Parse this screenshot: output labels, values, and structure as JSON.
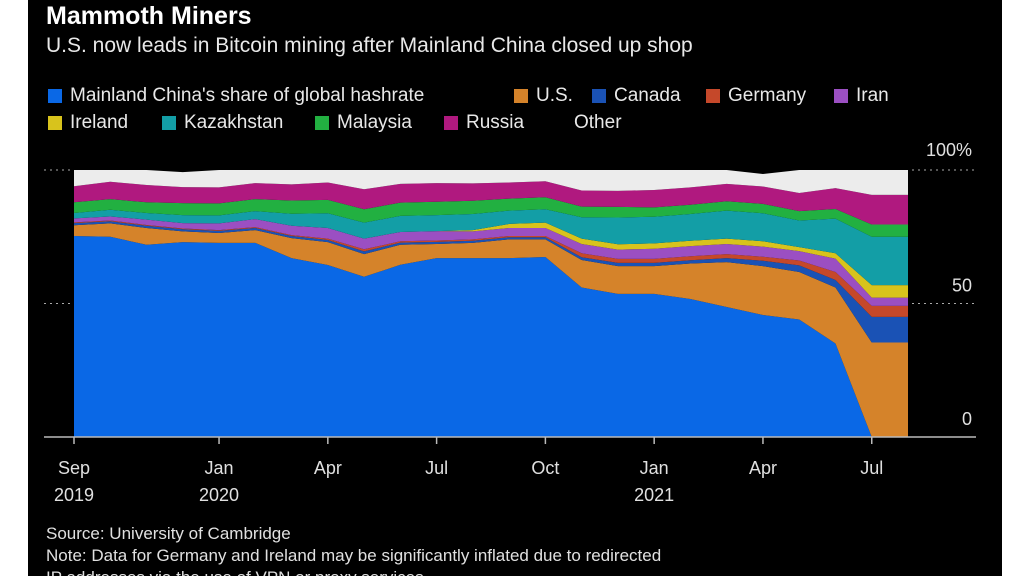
{
  "chart_data": {
    "type": "area",
    "stacked": true,
    "title": "Mammoth Miners",
    "subtitle": "U.S. now leads in Bitcoin mining after Mainland China closed up shop",
    "x": [
      "2019-09",
      "2019-10",
      "2019-11",
      "2019-12",
      "2020-01",
      "2020-02",
      "2020-03",
      "2020-04",
      "2020-05",
      "2020-06",
      "2020-07",
      "2020-08",
      "2020-09",
      "2020-10",
      "2020-11",
      "2020-12",
      "2021-01",
      "2021-02",
      "2021-03",
      "2021-04",
      "2021-05",
      "2021-06",
      "2021-07",
      "2021-08"
    ],
    "x_tick_labels": [
      {
        "month": "2019-09",
        "label": "Sep",
        "year": "2019"
      },
      {
        "month": "2020-01",
        "label": "Jan",
        "year": "2020"
      },
      {
        "month": "2020-04",
        "label": "Apr",
        "year": ""
      },
      {
        "month": "2020-07",
        "label": "Jul",
        "year": ""
      },
      {
        "month": "2020-10",
        "label": "Oct",
        "year": ""
      },
      {
        "month": "2021-01",
        "label": "Jan",
        "year": "2021"
      },
      {
        "month": "2021-04",
        "label": "Apr",
        "year": ""
      },
      {
        "month": "2021-07",
        "label": "Jul",
        "year": ""
      }
    ],
    "y_ticks": [
      {
        "value": 100,
        "label": "100%"
      },
      {
        "value": 50,
        "label": "50"
      },
      {
        "value": 0,
        "label": "0"
      }
    ],
    "ylim": [
      0,
      100
    ],
    "y_axis_side": "right",
    "grid": "dotted at 50 and 100",
    "legend_placement": "top",
    "series": [
      {
        "name": "Mainland China's share of global hashrate",
        "color": "#0a68e6",
        "values": [
          75.3,
          75,
          72,
          73,
          72.7,
          72.7,
          67,
          64.4,
          60,
          64.5,
          67,
          67,
          67,
          67.4,
          56,
          53.6,
          53.6,
          51.7,
          48.7,
          45.7,
          44,
          35,
          0,
          0
        ]
      },
      {
        "name": "U.S.",
        "color": "#d5832a",
        "values": [
          4,
          5,
          6.3,
          4,
          3.7,
          4.8,
          7.5,
          8.6,
          8.5,
          7.5,
          5.3,
          5.7,
          7,
          6.6,
          10.3,
          10.4,
          10.4,
          13.3,
          16.8,
          18.3,
          17.8,
          21,
          35.4,
          35.4
        ]
      },
      {
        "name": "Canada",
        "color": "#1a52b5",
        "values": [
          0.8,
          0.8,
          0.8,
          0.8,
          0.8,
          0.8,
          0.8,
          0.8,
          1,
          0.8,
          0.8,
          0.8,
          0.8,
          0.8,
          1,
          1.2,
          1.2,
          1.2,
          1.5,
          2,
          2.5,
          2.8,
          9.6,
          9.6
        ]
      },
      {
        "name": "Germany",
        "color": "#c5482a",
        "values": [
          0.3,
          0.3,
          0.3,
          0.3,
          0.3,
          0.3,
          0.3,
          0.5,
          0.8,
          0.5,
          0.5,
          0.5,
          0.5,
          0.5,
          1.5,
          1.5,
          1.5,
          1.5,
          1.5,
          1.5,
          1.8,
          3,
          4.1,
          4.1
        ]
      },
      {
        "name": "Iran",
        "color": "#9b4fc2",
        "values": [
          1.5,
          1.5,
          2,
          2,
          2.5,
          3,
          3.5,
          4,
          4,
          3.5,
          3.5,
          3,
          3,
          3,
          3.5,
          3.5,
          3.8,
          3.8,
          3.8,
          3.8,
          3.5,
          5,
          3.1,
          3.1
        ]
      },
      {
        "name": "Ireland",
        "color": "#d8c31c",
        "values": [
          0,
          0,
          0,
          0,
          0,
          0,
          0,
          0,
          0,
          0,
          0,
          0.5,
          1.5,
          2,
          2,
          2,
          2,
          2,
          2,
          2,
          1.5,
          2,
          4.7,
          4.7
        ]
      },
      {
        "name": "Kazakhstan",
        "color": "#139ea6",
        "values": [
          2,
          2.5,
          2.5,
          3,
          3,
          3,
          4.5,
          5.5,
          6,
          6,
          6,
          6,
          5,
          5,
          8,
          10,
          10,
          10,
          10.5,
          10.5,
          10,
          13,
          18.1,
          18.1
        ]
      },
      {
        "name": "Malaysia",
        "color": "#22b041",
        "values": [
          4,
          4,
          4,
          4.5,
          4.5,
          4.5,
          5,
          5,
          5,
          5,
          5,
          5,
          4.5,
          4.5,
          4,
          4,
          3.5,
          3.5,
          3.5,
          3.5,
          3.5,
          3.6,
          4.6,
          4.6
        ]
      },
      {
        "name": "Russia",
        "color": "#b0197f",
        "values": [
          6,
          6.5,
          6.5,
          6,
          6,
          6,
          6,
          6.5,
          7.5,
          7,
          7,
          6.5,
          6,
          6,
          6,
          6,
          6.5,
          6.5,
          6.5,
          6.5,
          6.8,
          7.8,
          11.1,
          11.1
        ]
      },
      {
        "name": "Other",
        "color": "#ececec",
        "values": [
          6.1,
          4.4,
          5.6,
          5.6,
          6.5,
          4.9,
          5.4,
          4.7,
          7.2,
          5.2,
          4.9,
          5,
          4.7,
          4.2,
          7.7,
          7.8,
          7.5,
          6.5,
          5.2,
          4.7,
          8.6,
          6.8,
          9.3,
          9.3
        ]
      }
    ]
  },
  "footer": {
    "source": "Source: University of Cambridge",
    "note": "Note: Data for Germany and Ireland may be significantly inflated due to redirected",
    "note_cont": "IP addresses via the use of VPN or proxy services"
  }
}
